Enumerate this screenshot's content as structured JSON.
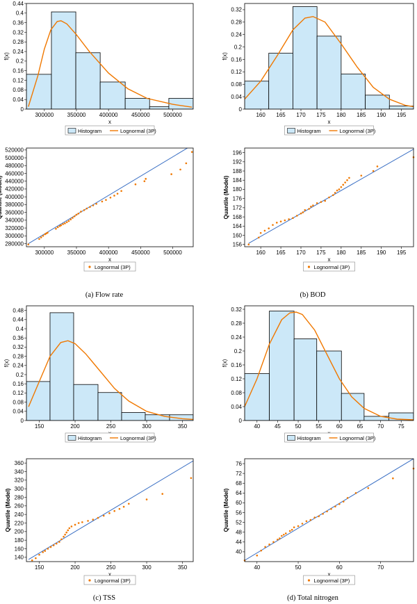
{
  "colors": {
    "bar_fill": "#cce8f8",
    "bar_stroke": "#000000",
    "curve": "#f07800",
    "qq_line": "#3a6fc4",
    "qq_point": "#f07800"
  },
  "chart_data": [
    {
      "id": "flow-hist",
      "type": "bar",
      "panel": "a",
      "xlabel": "x",
      "ylabel": "f(x)",
      "xlim": [
        272000,
        532000
      ],
      "ylim": [
        0,
        0.44
      ],
      "xticks": [
        300000,
        350000,
        400000,
        450000,
        500000
      ],
      "xtick_labels": [
        "300000",
        "350000",
        "400000",
        "450000",
        "500000"
      ],
      "yticks": [
        0,
        0.04,
        0.08,
        0.12,
        0.16,
        0.2,
        0.24,
        0.28,
        0.32,
        0.36,
        0.4,
        0.44
      ],
      "ytick_labels": [
        "0",
        "0.04",
        "0.08",
        "0.12",
        "0.16",
        "0.2",
        "0.24",
        "0.28",
        "0.32",
        "0.36",
        "0.4",
        "0.44"
      ],
      "bins": [
        {
          "x0": 272000,
          "x1": 311000,
          "value": 0.145
        },
        {
          "x0": 311000,
          "x1": 349000,
          "value": 0.405
        },
        {
          "x0": 349000,
          "x1": 387000,
          "value": 0.235
        },
        {
          "x0": 387000,
          "x1": 426000,
          "value": 0.113
        },
        {
          "x0": 426000,
          "x1": 464000,
          "value": 0.045
        },
        {
          "x0": 464000,
          "x1": 494000,
          "value": 0.01
        },
        {
          "x0": 494000,
          "x1": 532000,
          "value": 0.045
        }
      ],
      "curve": {
        "name": "Lognormal (3P)",
        "x": [
          275000,
          290000,
          300000,
          310000,
          320000,
          326000,
          335000,
          350000,
          370000,
          400000,
          430000,
          460000,
          500000,
          530000
        ],
        "y": [
          0.01,
          0.14,
          0.25,
          0.33,
          0.365,
          0.368,
          0.355,
          0.31,
          0.24,
          0.15,
          0.085,
          0.045,
          0.02,
          0.008
        ]
      },
      "legend": [
        "Histogram",
        "Lognormal (3P)"
      ]
    },
    {
      "id": "bod-hist",
      "type": "bar",
      "panel": "b",
      "xlabel": "x",
      "ylabel": "f(x)",
      "xlim": [
        156,
        198
      ],
      "ylim": [
        0,
        0.34
      ],
      "xticks": [
        160,
        165,
        170,
        175,
        180,
        185,
        190,
        195
      ],
      "xtick_labels": [
        "160",
        "165",
        "170",
        "175",
        "180",
        "185",
        "190",
        "195"
      ],
      "yticks": [
        0,
        0.04,
        0.08,
        0.12,
        0.16,
        0.2,
        0.24,
        0.28,
        0.32
      ],
      "ytick_labels": [
        "0",
        "0.04",
        "0.08",
        "0.12",
        "0.16",
        "0.2",
        "0.24",
        "0.28",
        "0.32"
      ],
      "bins": [
        {
          "x0": 156,
          "x1": 162,
          "value": 0.09
        },
        {
          "x0": 162,
          "x1": 168,
          "value": 0.18
        },
        {
          "x0": 168,
          "x1": 174,
          "value": 0.33
        },
        {
          "x0": 174,
          "x1": 180,
          "value": 0.235
        },
        {
          "x0": 180,
          "x1": 186,
          "value": 0.113
        },
        {
          "x0": 186,
          "x1": 192,
          "value": 0.045
        },
        {
          "x0": 192,
          "x1": 198,
          "value": 0.01
        }
      ],
      "curve": {
        "name": "Lognormal (3P)",
        "x": [
          156,
          160,
          164,
          168,
          171,
          173,
          176,
          180,
          184,
          188,
          192,
          196,
          198
        ],
        "y": [
          0.032,
          0.09,
          0.17,
          0.255,
          0.293,
          0.298,
          0.28,
          0.21,
          0.135,
          0.07,
          0.032,
          0.012,
          0.008
        ]
      },
      "legend": [
        "Histogram",
        "Lognormal (3P)"
      ]
    },
    {
      "id": "flow-qq",
      "type": "scatter",
      "panel": "a",
      "xlabel": "x",
      "ylabel": "Quantile (Model)",
      "xlim": [
        272000,
        532000
      ],
      "ylim": [
        272000,
        525000
      ],
      "xticks": [
        300000,
        350000,
        400000,
        450000,
        500000
      ],
      "xtick_labels": [
        "300000",
        "350000",
        "400000",
        "450000",
        "500000"
      ],
      "yticks": [
        280000,
        300000,
        320000,
        340000,
        360000,
        380000,
        400000,
        420000,
        440000,
        460000,
        480000,
        500000,
        520000
      ],
      "ytick_labels": [
        "280000",
        "300000",
        "320000",
        "340000",
        "360000",
        "380000",
        "400000",
        "420000",
        "440000",
        "460000",
        "480000",
        "500000",
        "520000"
      ],
      "line": [
        [
          275000,
          280000
        ],
        [
          530000,
          532000
        ]
      ],
      "points_x": [
        275000,
        292000,
        295000,
        298000,
        301000,
        303000,
        305000,
        318000,
        321000,
        324000,
        326000,
        329000,
        332000,
        335000,
        338000,
        341000,
        344000,
        347000,
        350000,
        353000,
        357000,
        362000,
        366000,
        371000,
        376000,
        381000,
        390000,
        396000,
        403000,
        409000,
        414000,
        420000,
        442000,
        456000,
        458000,
        498000,
        512000,
        521000,
        530000
      ],
      "points_y": [
        278000,
        292000,
        296000,
        300000,
        304000,
        306000,
        308000,
        318000,
        322000,
        325000,
        327000,
        330000,
        332000,
        335000,
        338000,
        342000,
        346000,
        350000,
        354000,
        357000,
        362000,
        366000,
        370000,
        374000,
        378000,
        382000,
        388000,
        392000,
        398000,
        403000,
        408000,
        415000,
        432000,
        440000,
        446000,
        458000,
        470000,
        486000,
        515000
      ],
      "legend": [
        "Lognormal (3P)"
      ]
    },
    {
      "id": "bod-qq",
      "type": "scatter",
      "panel": "b",
      "xlabel": "x",
      "ylabel": "Quantile (Model)",
      "xlim": [
        156,
        198
      ],
      "ylim": [
        155,
        198
      ],
      "xticks": [
        160,
        165,
        170,
        175,
        180,
        185,
        190,
        195
      ],
      "xtick_labels": [
        "160",
        "165",
        "170",
        "175",
        "180",
        "185",
        "190",
        "195"
      ],
      "yticks": [
        156,
        160,
        164,
        168,
        172,
        176,
        180,
        184,
        188,
        192,
        196
      ],
      "ytick_labels": [
        "156",
        "160",
        "164",
        "168",
        "172",
        "176",
        "180",
        "184",
        "188",
        "192",
        "196"
      ],
      "line": [
        [
          157,
          156.5
        ],
        [
          198,
          197.5
        ]
      ],
      "points_x": [
        157,
        159.5,
        160,
        161,
        162,
        163,
        164,
        165,
        166,
        167,
        168,
        169,
        170,
        170.5,
        171,
        172,
        172.5,
        173,
        174,
        175,
        176,
        177,
        178,
        178.5,
        179,
        179.5,
        180,
        180.5,
        181,
        181.5,
        182,
        185,
        188,
        189,
        198
      ],
      "points_y": [
        156,
        159,
        161,
        162,
        163,
        164.5,
        165.5,
        166,
        166.5,
        167,
        167.5,
        168.5,
        169.5,
        170,
        171,
        171.5,
        172.5,
        173,
        174,
        174.5,
        175,
        176.5,
        177.5,
        178.5,
        179.5,
        180,
        181,
        182,
        183,
        184,
        185,
        186,
        188,
        190,
        194
      ],
      "legend": [
        "Lognormal (3P)"
      ]
    },
    {
      "id": "tss-hist",
      "type": "bar",
      "panel": "c",
      "xlabel": "x",
      "ylabel": "f(x)",
      "xlim": [
        132,
        365
      ],
      "ylim": [
        0,
        0.5
      ],
      "xticks": [
        150,
        200,
        250,
        300,
        350
      ],
      "xtick_labels": [
        "150",
        "200",
        "250",
        "300",
        "350"
      ],
      "yticks": [
        0,
        0.04,
        0.08,
        0.12,
        0.16,
        0.2,
        0.24,
        0.28,
        0.32,
        0.36,
        0.4,
        0.44,
        0.48
      ],
      "ytick_labels": [
        "0",
        "0.04",
        "0.08",
        "0.12",
        "0.16",
        "0.2",
        "0.24",
        "0.28",
        "0.32",
        "0.36",
        "0.4",
        "0.44",
        "0.48"
      ],
      "bins": [
        {
          "x0": 132,
          "x1": 165,
          "value": 0.17
        },
        {
          "x0": 165,
          "x1": 198,
          "value": 0.47
        },
        {
          "x0": 198,
          "x1": 232,
          "value": 0.157
        },
        {
          "x0": 232,
          "x1": 265,
          "value": 0.122
        },
        {
          "x0": 265,
          "x1": 298,
          "value": 0.035
        },
        {
          "x0": 298,
          "x1": 332,
          "value": 0.025
        },
        {
          "x0": 332,
          "x1": 365,
          "value": 0.025
        }
      ],
      "curve": {
        "name": "Lognormal (3P)",
        "x": [
          135,
          150,
          165,
          180,
          190,
          200,
          215,
          235,
          255,
          275,
          300,
          325,
          350,
          365
        ],
        "y": [
          0.06,
          0.17,
          0.28,
          0.34,
          0.348,
          0.335,
          0.29,
          0.215,
          0.14,
          0.085,
          0.04,
          0.018,
          0.008,
          0.005
        ]
      },
      "legend": [
        "Histogram",
        "Lognormal (3P)"
      ]
    },
    {
      "id": "tn-hist",
      "type": "bar",
      "panel": "d",
      "xlabel": "x",
      "ylabel": "f(x)",
      "xlim": [
        37,
        78
      ],
      "ylim": [
        0,
        0.33
      ],
      "xticks": [
        40,
        45,
        50,
        55,
        60,
        65,
        70,
        75
      ],
      "xtick_labels": [
        "40",
        "45",
        "50",
        "55",
        "60",
        "65",
        "70",
        "75"
      ],
      "yticks": [
        0,
        0.04,
        0.08,
        0.12,
        0.16,
        0.2,
        0.24,
        0.28,
        0.32
      ],
      "ytick_labels": [
        "0",
        "0.04",
        "0.08",
        "0.12",
        "0.16",
        "0.2",
        "0.24",
        "0.28",
        "0.32"
      ],
      "bins": [
        {
          "x0": 37,
          "x1": 43,
          "value": 0.135
        },
        {
          "x0": 43,
          "x1": 49,
          "value": 0.315
        },
        {
          "x0": 49,
          "x1": 54.5,
          "value": 0.235
        },
        {
          "x0": 54.5,
          "x1": 60.5,
          "value": 0.2
        },
        {
          "x0": 60.5,
          "x1": 66,
          "value": 0.078
        },
        {
          "x0": 66,
          "x1": 72,
          "value": 0.012
        },
        {
          "x0": 72,
          "x1": 78,
          "value": 0.022
        }
      ],
      "curve": {
        "name": "Lognormal (3P)",
        "x": [
          37,
          40,
          43,
          46,
          48,
          49.5,
          51,
          54,
          57,
          60,
          63,
          66,
          70,
          74,
          78
        ],
        "y": [
          0.04,
          0.12,
          0.22,
          0.29,
          0.31,
          0.312,
          0.305,
          0.26,
          0.19,
          0.12,
          0.068,
          0.035,
          0.012,
          0.004,
          0.002
        ]
      },
      "legend": [
        "Histogram",
        "Lognormal (3P)"
      ]
    },
    {
      "id": "tss-qq",
      "type": "scatter",
      "panel": "c",
      "xlabel": "x",
      "ylabel": "Quantile (Model)",
      "xlim": [
        132,
        365
      ],
      "ylim": [
        130,
        370
      ],
      "xticks": [
        150,
        200,
        250,
        300,
        350
      ],
      "xtick_labels": [
        "150",
        "200",
        "250",
        "300",
        "350"
      ],
      "yticks": [
        140,
        160,
        180,
        200,
        220,
        240,
        260,
        280,
        300,
        320,
        340,
        360
      ],
      "ytick_labels": [
        "140",
        "160",
        "180",
        "200",
        "220",
        "240",
        "260",
        "280",
        "300",
        "320",
        "340",
        "360"
      ],
      "line": [
        [
          135,
          135
        ],
        [
          365,
          365
        ]
      ],
      "points_x": [
        140,
        145,
        150,
        155,
        158,
        162,
        166,
        170,
        174,
        178,
        181,
        184,
        186,
        188,
        190,
        192,
        195,
        200,
        205,
        210,
        218,
        225,
        232,
        240,
        248,
        255,
        262,
        268,
        275,
        300,
        322,
        362
      ],
      "points_y": [
        133,
        138,
        146,
        152,
        155,
        160,
        164,
        168,
        172,
        176,
        182,
        188,
        193,
        198,
        203,
        208,
        212,
        216,
        220,
        222,
        225,
        228,
        232,
        237,
        243,
        248,
        253,
        258,
        265,
        275,
        288,
        325
      ],
      "legend": [
        "Lognormal (3P)"
      ]
    },
    {
      "id": "tn-qq",
      "type": "scatter",
      "panel": "d",
      "xlabel": "x",
      "ylabel": "Quantile (Model)",
      "xlim": [
        37,
        78
      ],
      "ylim": [
        36,
        78
      ],
      "xticks": [
        40,
        50,
        60,
        70
      ],
      "xtick_labels": [
        "40",
        "50",
        "60",
        "70"
      ],
      "yticks": [
        40,
        44,
        48,
        52,
        56,
        60,
        64,
        68,
        72,
        76
      ],
      "ytick_labels": [
        "40",
        "44",
        "48",
        "52",
        "56",
        "60",
        "64",
        "68",
        "72",
        "76"
      ],
      "line": [
        [
          37,
          36.5
        ],
        [
          78,
          78
        ]
      ],
      "points_x": [
        37,
        40,
        41,
        42,
        43,
        44,
        45,
        45.5,
        46,
        46.5,
        47,
        48,
        48.5,
        49,
        50,
        51,
        52,
        53,
        54,
        55,
        56,
        57,
        58,
        59,
        60,
        61,
        62,
        64,
        67,
        73,
        78
      ],
      "points_y": [
        36.5,
        38.5,
        40.5,
        42,
        43,
        44,
        45,
        45.5,
        46.5,
        47,
        47.5,
        48.5,
        49,
        50,
        50.5,
        51.5,
        52.5,
        53,
        54,
        54.5,
        55.5,
        56.5,
        57.5,
        58.5,
        59.5,
        60.5,
        62,
        64,
        66,
        70,
        74
      ],
      "legend": [
        "Lognormal (3P)"
      ]
    }
  ],
  "captions": {
    "a": "(a)  Flow  rate",
    "b": "(b)  BOD",
    "c": "(c)  TSS",
    "d": "(d)  Total  nitrogen"
  }
}
